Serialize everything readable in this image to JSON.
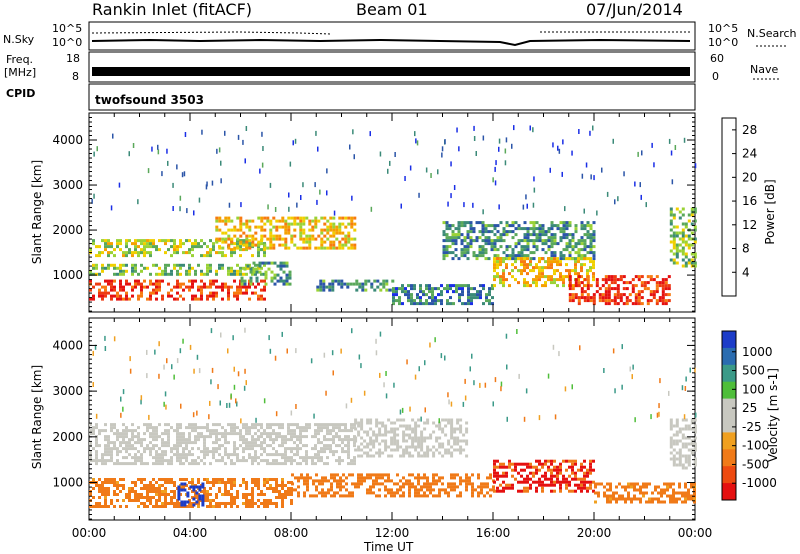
{
  "header": {
    "station": "Rankin Inlet (fitACF)",
    "beam": "Beam 01",
    "date": "07/Jun/2014"
  },
  "panels": {
    "nsky_label": "N.Sky",
    "nsky_ticks": [
      "10^5",
      "10^0"
    ],
    "nsearch_label": "N.Search",
    "nsearch_ticks": [
      "10^5",
      "10^0"
    ],
    "freq_label_1": "Freq.",
    "freq_label_2": "[MHz]",
    "freq_ticks": [
      "18",
      "8"
    ],
    "nave_label": "Nave",
    "nave_ticks": [
      "60",
      "0"
    ],
    "cpid_label": "CPID",
    "cpid_value": "twofsound 3503"
  },
  "colors": {
    "power": [
      "#1a2ee6",
      "#2b55a8",
      "#3b8a78",
      "#5aa85a",
      "#9ad236",
      "#f0d000",
      "#f6a000",
      "#f77a10",
      "#ee3a10",
      "#e51010"
    ],
    "velocity": [
      "#1c3cc8",
      "#2a6cb0",
      "#3b9a88",
      "#4fbe3a",
      "#c8c8c0",
      "#c8c8c0",
      "#f0a020",
      "#f07a18",
      "#ee4a10",
      "#e51010"
    ]
  },
  "chart_data": [
    {
      "type": "heatmap",
      "title": "",
      "ylabel": "Slant Range [km]",
      "xlabel": "",
      "ylim": [
        180,
        4600
      ],
      "y_ticks": [
        "1000",
        "2000",
        "3000",
        "4000"
      ],
      "colorbar_label": "Power [dB]",
      "colorbar_ticks": [
        "4",
        "8",
        "12",
        "16",
        "20",
        "24",
        "28"
      ],
      "colorbar_range": [
        0,
        30
      ],
      "x_ticks": [
        "00:00",
        "04:00",
        "08:00",
        "12:00",
        "16:00",
        "20:00",
        "00:00"
      ],
      "x_range_hours": [
        0,
        24
      ],
      "bands": [
        {
          "hours": [
            0,
            7
          ],
          "range_km": [
            500,
            900
          ],
          "value": 26
        },
        {
          "hours": [
            0,
            7
          ],
          "range_km": [
            1000,
            1250
          ],
          "value": 12
        },
        {
          "hours": [
            0,
            7
          ],
          "range_km": [
            1450,
            1800
          ],
          "value": 14
        },
        {
          "hours": [
            5,
            10.5
          ],
          "range_km": [
            1600,
            2300
          ],
          "value": 18
        },
        {
          "hours": [
            6,
            8
          ],
          "range_km": [
            800,
            1300
          ],
          "value": 9
        },
        {
          "hours": [
            9,
            12
          ],
          "range_km": [
            700,
            900
          ],
          "value": 8
        },
        {
          "hours": [
            12,
            16
          ],
          "range_km": [
            400,
            800
          ],
          "value": 7
        },
        {
          "hours": [
            14,
            20
          ],
          "range_km": [
            1400,
            2200
          ],
          "value": 8
        },
        {
          "hours": [
            16,
            20
          ],
          "range_km": [
            800,
            1400
          ],
          "value": 18
        },
        {
          "hours": [
            19,
            23
          ],
          "range_km": [
            400,
            1000
          ],
          "value": 27
        },
        {
          "hours": [
            23,
            24
          ],
          "range_km": [
            1200,
            2500
          ],
          "value": 12
        }
      ]
    },
    {
      "type": "heatmap",
      "title": "",
      "ylabel": "Slant Range [km]",
      "xlabel": "Time UT",
      "ylim": [
        180,
        4600
      ],
      "y_ticks": [
        "1000",
        "2000",
        "3000",
        "4000"
      ],
      "colorbar_label": "Velocity [m s-1]",
      "colorbar_ticks": [
        "1000",
        "500",
        "100",
        "25",
        "-25",
        "-100",
        "-500",
        "-1000"
      ],
      "colorbar_range": [
        -1000,
        1000
      ],
      "x_ticks": [
        "00:00",
        "04:00",
        "08:00",
        "12:00",
        "16:00",
        "20:00",
        "00:00"
      ],
      "x_range_hours": [
        0,
        24
      ],
      "bands": [
        {
          "hours": [
            0,
            10.5
          ],
          "range_km": [
            1400,
            2300
          ],
          "value": 0
        },
        {
          "hours": [
            10.5,
            15
          ],
          "range_km": [
            1600,
            2400
          ],
          "value": 0
        },
        {
          "hours": [
            0,
            8
          ],
          "range_km": [
            500,
            1100
          ],
          "value": -150
        },
        {
          "hours": [
            3.5,
            4.5
          ],
          "range_km": [
            500,
            1000
          ],
          "value": 700
        },
        {
          "hours": [
            8,
            16
          ],
          "range_km": [
            700,
            1200
          ],
          "value": -200
        },
        {
          "hours": [
            16,
            20
          ],
          "range_km": [
            800,
            1500
          ],
          "value": -600
        },
        {
          "hours": [
            20,
            24
          ],
          "range_km": [
            600,
            1000
          ],
          "value": -150
        },
        {
          "hours": [
            23,
            24
          ],
          "range_km": [
            1300,
            2400
          ],
          "value": 0
        }
      ]
    }
  ]
}
